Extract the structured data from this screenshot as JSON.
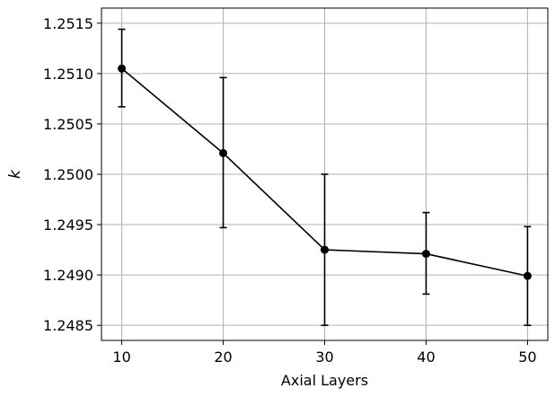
{
  "chart_data": {
    "type": "line",
    "title": "",
    "xlabel": "Axial Layers",
    "ylabel": "k",
    "x": [
      10,
      20,
      30,
      40,
      50
    ],
    "series": [
      {
        "values": [
          1.25105,
          1.25021,
          1.24925,
          1.24921,
          1.24899
        ],
        "err_low": [
          1.25067,
          1.24947,
          1.2485,
          1.24881,
          1.2485
        ],
        "err_high": [
          1.25144,
          1.25096,
          1.25,
          1.24962,
          1.24948
        ],
        "color": "#000000",
        "marker": "circle"
      }
    ],
    "xlim": [
      8,
      52
    ],
    "ylim": [
      1.24835,
      1.25165
    ],
    "xticks": [
      10,
      20,
      30,
      40,
      50
    ],
    "xtick_labels": [
      "10",
      "20",
      "30",
      "40",
      "50"
    ],
    "yticks": [
      1.2485,
      1.249,
      1.2495,
      1.25,
      1.2505,
      1.251,
      1.2515
    ],
    "ytick_labels": [
      "1.2485",
      "1.2490",
      "1.2495",
      "1.2500",
      "1.2505",
      "1.2510",
      "1.2515"
    ],
    "grid": true,
    "grid_color": "#b0b0b0"
  }
}
